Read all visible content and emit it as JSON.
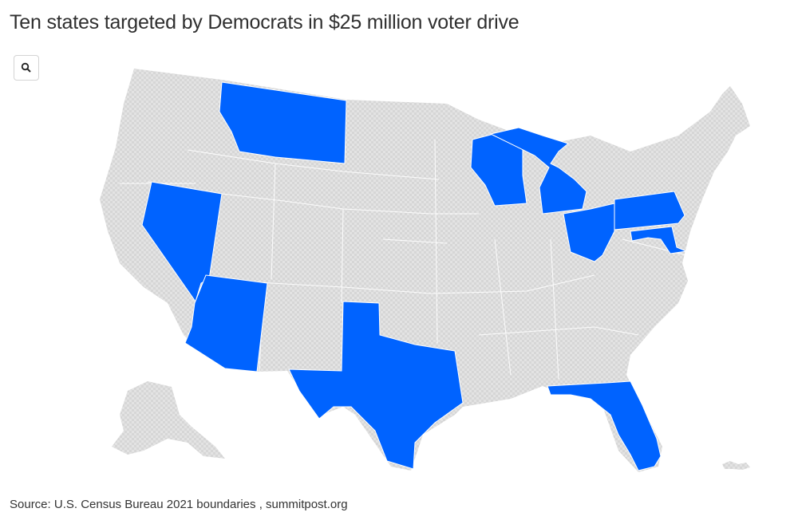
{
  "title": "Ten states targeted by Democrats in $25 million voter drive",
  "source": "Source: U.S. Census Bureau 2021 boundaries , summitpost.org",
  "zoom_button": {
    "icon": "search-icon"
  },
  "colors": {
    "targeted": "#0063ff",
    "other": "#e0e0e0",
    "border": "#ffffff"
  },
  "map": {
    "targeted_states": [
      "Montana",
      "Nevada",
      "Arizona",
      "Texas",
      "Wisconsin",
      "Michigan",
      "Ohio",
      "Pennsylvania",
      "Maryland",
      "Florida"
    ]
  }
}
